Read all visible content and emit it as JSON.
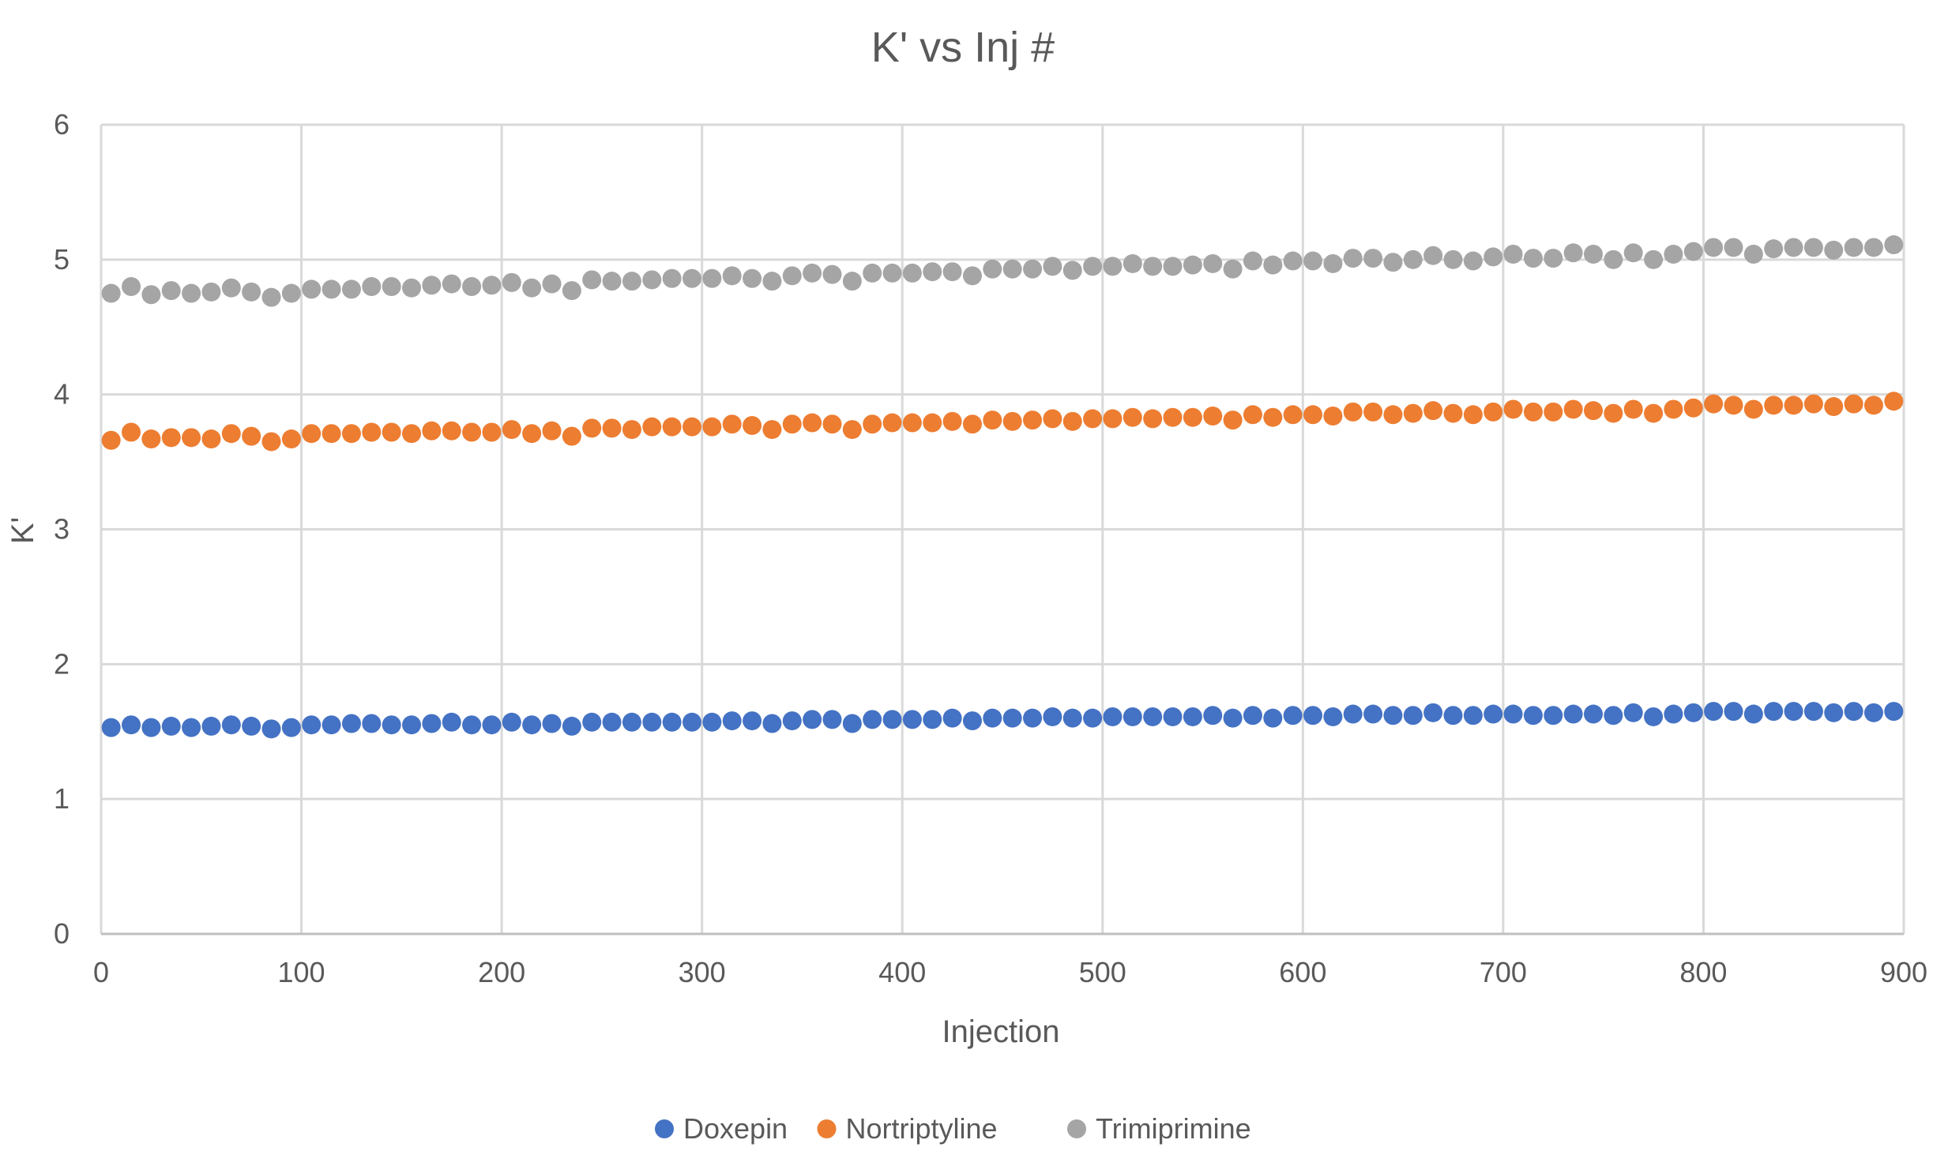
{
  "chart_data": {
    "type": "scatter",
    "title": "K' vs Inj #",
    "xlabel": "Injection",
    "ylabel": "K'",
    "xlim": [
      0,
      900
    ],
    "ylim": [
      0,
      6
    ],
    "xticks": [
      0,
      100,
      200,
      300,
      400,
      500,
      600,
      700,
      800,
      900
    ],
    "yticks": [
      0,
      1,
      2,
      3,
      4,
      5,
      6
    ],
    "xtick_labels": [
      "0",
      "100",
      "200",
      "300",
      "400",
      "500",
      "600",
      "700",
      "800",
      "900"
    ],
    "ytick_labels": [
      "0",
      "1",
      "2",
      "3",
      "4",
      "5",
      "6"
    ],
    "grid": true,
    "legend_position": "bottom",
    "x": [
      5,
      15,
      25,
      35,
      45,
      55,
      65,
      75,
      85,
      95,
      105,
      115,
      125,
      135,
      145,
      155,
      165,
      175,
      185,
      195,
      205,
      215,
      225,
      235,
      245,
      255,
      265,
      275,
      285,
      295,
      305,
      315,
      325,
      335,
      345,
      355,
      365,
      375,
      385,
      395,
      405,
      415,
      425,
      435,
      445,
      455,
      465,
      475,
      485,
      495,
      505,
      515,
      525,
      535,
      545,
      555,
      565,
      575,
      585,
      595,
      605,
      615,
      625,
      635,
      645,
      655,
      665,
      675,
      685,
      695,
      705,
      715,
      725,
      735,
      745,
      755,
      765,
      775,
      785,
      795,
      805,
      815,
      825,
      835,
      845,
      855,
      865,
      875,
      885,
      895
    ],
    "series": [
      {
        "name": "Doxepin",
        "color": "#4472c4",
        "values": [
          1.53,
          1.55,
          1.53,
          1.54,
          1.53,
          1.54,
          1.55,
          1.54,
          1.52,
          1.53,
          1.55,
          1.55,
          1.56,
          1.56,
          1.55,
          1.55,
          1.56,
          1.57,
          1.55,
          1.55,
          1.57,
          1.55,
          1.56,
          1.54,
          1.57,
          1.57,
          1.57,
          1.57,
          1.57,
          1.57,
          1.57,
          1.58,
          1.58,
          1.56,
          1.58,
          1.59,
          1.59,
          1.56,
          1.59,
          1.59,
          1.59,
          1.59,
          1.6,
          1.58,
          1.6,
          1.6,
          1.6,
          1.61,
          1.6,
          1.6,
          1.61,
          1.61,
          1.61,
          1.61,
          1.61,
          1.62,
          1.6,
          1.62,
          1.6,
          1.62,
          1.62,
          1.61,
          1.63,
          1.63,
          1.62,
          1.62,
          1.64,
          1.62,
          1.62,
          1.63,
          1.63,
          1.62,
          1.62,
          1.63,
          1.63,
          1.62,
          1.64,
          1.61,
          1.63,
          1.64,
          1.65,
          1.65,
          1.63,
          1.65,
          1.65,
          1.65,
          1.64,
          1.65,
          1.64,
          1.65
        ]
      },
      {
        "name": "Nortriptyline",
        "color": "#ed7d31",
        "values": [
          3.66,
          3.72,
          3.67,
          3.68,
          3.68,
          3.67,
          3.71,
          3.69,
          3.65,
          3.67,
          3.71,
          3.71,
          3.71,
          3.72,
          3.72,
          3.71,
          3.73,
          3.73,
          3.72,
          3.72,
          3.74,
          3.71,
          3.73,
          3.69,
          3.75,
          3.75,
          3.74,
          3.76,
          3.76,
          3.76,
          3.76,
          3.78,
          3.77,
          3.74,
          3.78,
          3.79,
          3.78,
          3.74,
          3.78,
          3.79,
          3.79,
          3.79,
          3.8,
          3.78,
          3.81,
          3.8,
          3.81,
          3.82,
          3.8,
          3.82,
          3.82,
          3.83,
          3.82,
          3.83,
          3.83,
          3.84,
          3.81,
          3.85,
          3.83,
          3.85,
          3.85,
          3.84,
          3.87,
          3.87,
          3.85,
          3.86,
          3.88,
          3.86,
          3.85,
          3.87,
          3.89,
          3.87,
          3.87,
          3.89,
          3.88,
          3.86,
          3.89,
          3.86,
          3.89,
          3.9,
          3.93,
          3.92,
          3.89,
          3.92,
          3.92,
          3.93,
          3.91,
          3.93,
          3.92,
          3.95
        ]
      },
      {
        "name": "Trimiprimine",
        "color": "#a5a5a5",
        "values": [
          4.75,
          4.8,
          4.74,
          4.77,
          4.75,
          4.76,
          4.79,
          4.76,
          4.72,
          4.75,
          4.78,
          4.78,
          4.78,
          4.8,
          4.8,
          4.79,
          4.81,
          4.82,
          4.8,
          4.81,
          4.83,
          4.79,
          4.82,
          4.77,
          4.85,
          4.84,
          4.84,
          4.85,
          4.86,
          4.86,
          4.86,
          4.88,
          4.86,
          4.84,
          4.88,
          4.9,
          4.89,
          4.84,
          4.9,
          4.9,
          4.9,
          4.91,
          4.91,
          4.88,
          4.93,
          4.93,
          4.93,
          4.95,
          4.92,
          4.95,
          4.95,
          4.97,
          4.95,
          4.95,
          4.96,
          4.97,
          4.93,
          4.99,
          4.96,
          4.99,
          4.99,
          4.97,
          5.01,
          5.01,
          4.98,
          5.0,
          5.03,
          5.0,
          4.99,
          5.02,
          5.04,
          5.01,
          5.01,
          5.05,
          5.04,
          5.0,
          5.05,
          5.0,
          5.04,
          5.06,
          5.09,
          5.09,
          5.04,
          5.08,
          5.09,
          5.09,
          5.07,
          5.09,
          5.09,
          5.11
        ]
      }
    ]
  }
}
